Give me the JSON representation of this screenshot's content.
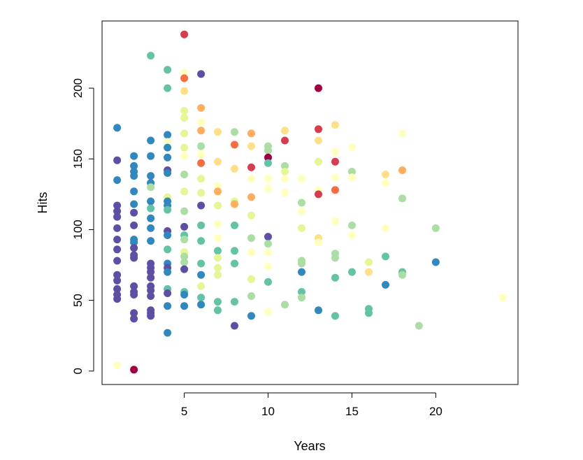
{
  "chart_data": {
    "type": "scatter",
    "title": "",
    "xlabel": "Years",
    "ylabel": "Hits",
    "xlim": [
      0.1,
      24.9
    ],
    "ylim": [
      -9.5,
      247.5
    ],
    "x_ticks": [
      5,
      10,
      15,
      20
    ],
    "y_ticks": [
      0,
      50,
      100,
      150,
      200
    ],
    "x_tick_labels": [
      "5",
      "10",
      "15",
      "20"
    ],
    "y_tick_labels": [
      "0",
      "50",
      "100",
      "150",
      "200"
    ],
    "grid": false,
    "legend": "none",
    "palette": [
      "#5E4FA2",
      "#3288BD",
      "#66C2A5",
      "#ABDDA4",
      "#E6F598",
      "#FFFFBF",
      "#FEE08B",
      "#FDAE61",
      "#F46D43",
      "#D53E4F",
      "#9E0142"
    ],
    "points": [
      {
        "x": 1,
        "y": 172,
        "c": 1
      },
      {
        "x": 1,
        "y": 149,
        "c": 0
      },
      {
        "x": 1,
        "y": 135,
        "c": 1
      },
      {
        "x": 1,
        "y": 117,
        "c": 0
      },
      {
        "x": 1,
        "y": 113,
        "c": 0
      },
      {
        "x": 1,
        "y": 109,
        "c": 0
      },
      {
        "x": 1,
        "y": 101,
        "c": 0
      },
      {
        "x": 1,
        "y": 93,
        "c": 0
      },
      {
        "x": 1,
        "y": 86,
        "c": 0
      },
      {
        "x": 1,
        "y": 78,
        "c": 0
      },
      {
        "x": 1,
        "y": 68,
        "c": 0
      },
      {
        "x": 1,
        "y": 64,
        "c": 0
      },
      {
        "x": 1,
        "y": 58,
        "c": 0
      },
      {
        "x": 1,
        "y": 54,
        "c": 0
      },
      {
        "x": 1,
        "y": 51,
        "c": 0
      },
      {
        "x": 1,
        "y": 4,
        "c": 5
      },
      {
        "x": 2,
        "y": 152,
        "c": 1
      },
      {
        "x": 2,
        "y": 145,
        "c": 1
      },
      {
        "x": 2,
        "y": 141,
        "c": 1
      },
      {
        "x": 2,
        "y": 138,
        "c": 1
      },
      {
        "x": 2,
        "y": 127,
        "c": 1
      },
      {
        "x": 2,
        "y": 118,
        "c": 1
      },
      {
        "x": 2,
        "y": 112,
        "c": 0
      },
      {
        "x": 2,
        "y": 103,
        "c": 0
      },
      {
        "x": 2,
        "y": 93,
        "c": 1
      },
      {
        "x": 2,
        "y": 91,
        "c": 1
      },
      {
        "x": 2,
        "y": 87,
        "c": 0
      },
      {
        "x": 2,
        "y": 82,
        "c": 0
      },
      {
        "x": 2,
        "y": 80,
        "c": 0
      },
      {
        "x": 2,
        "y": 60,
        "c": 0
      },
      {
        "x": 2,
        "y": 56,
        "c": 0
      },
      {
        "x": 2,
        "y": 54,
        "c": 0
      },
      {
        "x": 2,
        "y": 41,
        "c": 0
      },
      {
        "x": 2,
        "y": 37,
        "c": 0
      },
      {
        "x": 2,
        "y": 1,
        "c": 10
      },
      {
        "x": 3,
        "y": 223,
        "c": 2
      },
      {
        "x": 3,
        "y": 163,
        "c": 1
      },
      {
        "x": 3,
        "y": 152,
        "c": 1
      },
      {
        "x": 3,
        "y": 138,
        "c": 1
      },
      {
        "x": 3,
        "y": 133,
        "c": 1
      },
      {
        "x": 3,
        "y": 130,
        "c": 3
      },
      {
        "x": 3,
        "y": 120,
        "c": 1
      },
      {
        "x": 3,
        "y": 115,
        "c": 2
      },
      {
        "x": 3,
        "y": 108,
        "c": 1
      },
      {
        "x": 3,
        "y": 101,
        "c": 1
      },
      {
        "x": 3,
        "y": 92,
        "c": 1
      },
      {
        "x": 3,
        "y": 76,
        "c": 0
      },
      {
        "x": 3,
        "y": 73,
        "c": 0
      },
      {
        "x": 3,
        "y": 70,
        "c": 0
      },
      {
        "x": 3,
        "y": 66,
        "c": 0
      },
      {
        "x": 3,
        "y": 60,
        "c": 0
      },
      {
        "x": 3,
        "y": 57,
        "c": 0
      },
      {
        "x": 3,
        "y": 53,
        "c": 0
      },
      {
        "x": 3,
        "y": 43,
        "c": 0
      },
      {
        "x": 3,
        "y": 41,
        "c": 0
      },
      {
        "x": 3,
        "y": 39,
        "c": 0
      },
      {
        "x": 4,
        "y": 213,
        "c": 2
      },
      {
        "x": 4,
        "y": 200,
        "c": 2
      },
      {
        "x": 4,
        "y": 167,
        "c": 1
      },
      {
        "x": 4,
        "y": 162,
        "c": 5
      },
      {
        "x": 4,
        "y": 158,
        "c": 1
      },
      {
        "x": 4,
        "y": 151,
        "c": 1
      },
      {
        "x": 4,
        "y": 142,
        "c": 0
      },
      {
        "x": 4,
        "y": 140,
        "c": 1
      },
      {
        "x": 4,
        "y": 123,
        "c": 4
      },
      {
        "x": 4,
        "y": 120,
        "c": 1
      },
      {
        "x": 4,
        "y": 117,
        "c": 1
      },
      {
        "x": 4,
        "y": 114,
        "c": 2
      },
      {
        "x": 4,
        "y": 99,
        "c": 0
      },
      {
        "x": 4,
        "y": 96,
        "c": 1
      },
      {
        "x": 4,
        "y": 86,
        "c": 2
      },
      {
        "x": 4,
        "y": 76,
        "c": 1
      },
      {
        "x": 4,
        "y": 73,
        "c": 0
      },
      {
        "x": 4,
        "y": 70,
        "c": 1
      },
      {
        "x": 4,
        "y": 58,
        "c": 2
      },
      {
        "x": 4,
        "y": 55,
        "c": 0
      },
      {
        "x": 4,
        "y": 46,
        "c": 1
      },
      {
        "x": 4,
        "y": 27,
        "c": 1
      },
      {
        "x": 5,
        "y": 238,
        "c": 9
      },
      {
        "x": 5,
        "y": 211,
        "c": 5
      },
      {
        "x": 5,
        "y": 207,
        "c": 8
      },
      {
        "x": 5,
        "y": 198,
        "c": 6
      },
      {
        "x": 5,
        "y": 184,
        "c": 4
      },
      {
        "x": 5,
        "y": 179,
        "c": 4
      },
      {
        "x": 5,
        "y": 168,
        "c": 4
      },
      {
        "x": 5,
        "y": 158,
        "c": 4
      },
      {
        "x": 5,
        "y": 152,
        "c": 5
      },
      {
        "x": 5,
        "y": 139,
        "c": 3
      },
      {
        "x": 5,
        "y": 127,
        "c": 4
      },
      {
        "x": 5,
        "y": 113,
        "c": 3
      },
      {
        "x": 5,
        "y": 102,
        "c": 0
      },
      {
        "x": 5,
        "y": 96,
        "c": 2
      },
      {
        "x": 5,
        "y": 93,
        "c": 3
      },
      {
        "x": 5,
        "y": 84,
        "c": 4
      },
      {
        "x": 5,
        "y": 81,
        "c": 3
      },
      {
        "x": 5,
        "y": 77,
        "c": 3
      },
      {
        "x": 5,
        "y": 72,
        "c": 0
      },
      {
        "x": 5,
        "y": 56,
        "c": 2
      },
      {
        "x": 5,
        "y": 54,
        "c": 1
      },
      {
        "x": 5,
        "y": 46,
        "c": 1
      },
      {
        "x": 6,
        "y": 210,
        "c": 0
      },
      {
        "x": 6,
        "y": 186,
        "c": 7
      },
      {
        "x": 6,
        "y": 176,
        "c": 5
      },
      {
        "x": 6,
        "y": 170,
        "c": 7
      },
      {
        "x": 6,
        "y": 159,
        "c": 3
      },
      {
        "x": 6,
        "y": 153,
        "c": 5
      },
      {
        "x": 6,
        "y": 147,
        "c": 8
      },
      {
        "x": 6,
        "y": 136,
        "c": 4
      },
      {
        "x": 6,
        "y": 126,
        "c": 4
      },
      {
        "x": 6,
        "y": 117,
        "c": 0
      },
      {
        "x": 6,
        "y": 103,
        "c": 2
      },
      {
        "x": 6,
        "y": 92,
        "c": 2
      },
      {
        "x": 6,
        "y": 76,
        "c": 2
      },
      {
        "x": 6,
        "y": 68,
        "c": 1
      },
      {
        "x": 6,
        "y": 60,
        "c": 4
      },
      {
        "x": 6,
        "y": 52,
        "c": 2
      },
      {
        "x": 6,
        "y": 47,
        "c": 1
      },
      {
        "x": 7,
        "y": 169,
        "c": 6
      },
      {
        "x": 7,
        "y": 148,
        "c": 6
      },
      {
        "x": 7,
        "y": 131,
        "c": 5
      },
      {
        "x": 7,
        "y": 127,
        "c": 7
      },
      {
        "x": 7,
        "y": 117,
        "c": 4
      },
      {
        "x": 7,
        "y": 104,
        "c": 5
      },
      {
        "x": 7,
        "y": 94,
        "c": 5
      },
      {
        "x": 7,
        "y": 85,
        "c": 2
      },
      {
        "x": 7,
        "y": 80,
        "c": 4
      },
      {
        "x": 7,
        "y": 73,
        "c": 4
      },
      {
        "x": 7,
        "y": 68,
        "c": 4
      },
      {
        "x": 7,
        "y": 49,
        "c": 2
      },
      {
        "x": 7,
        "y": 43,
        "c": 2
      },
      {
        "x": 8,
        "y": 169,
        "c": 3
      },
      {
        "x": 8,
        "y": 160,
        "c": 8
      },
      {
        "x": 8,
        "y": 143,
        "c": 6
      },
      {
        "x": 8,
        "y": 120,
        "c": 4
      },
      {
        "x": 8,
        "y": 118,
        "c": 7
      },
      {
        "x": 8,
        "y": 103,
        "c": 2
      },
      {
        "x": 8,
        "y": 85,
        "c": 2
      },
      {
        "x": 8,
        "y": 76,
        "c": 2
      },
      {
        "x": 8,
        "y": 49,
        "c": 2
      },
      {
        "x": 8,
        "y": 32,
        "c": 0
      },
      {
        "x": 9,
        "y": 168,
        "c": 7
      },
      {
        "x": 9,
        "y": 159,
        "c": 6
      },
      {
        "x": 9,
        "y": 144,
        "c": 9
      },
      {
        "x": 9,
        "y": 136,
        "c": 5
      },
      {
        "x": 9,
        "y": 123,
        "c": 7
      },
      {
        "x": 9,
        "y": 110,
        "c": 4
      },
      {
        "x": 9,
        "y": 94,
        "c": 3
      },
      {
        "x": 9,
        "y": 84,
        "c": 5
      },
      {
        "x": 9,
        "y": 65,
        "c": 4
      },
      {
        "x": 9,
        "y": 53,
        "c": 3
      },
      {
        "x": 9,
        "y": 39,
        "c": 1
      },
      {
        "x": 10,
        "y": 159,
        "c": 3
      },
      {
        "x": 10,
        "y": 156,
        "c": 3
      },
      {
        "x": 10,
        "y": 151,
        "c": 10
      },
      {
        "x": 10,
        "y": 147,
        "c": 2
      },
      {
        "x": 10,
        "y": 136,
        "c": 5
      },
      {
        "x": 10,
        "y": 129,
        "c": 5
      },
      {
        "x": 10,
        "y": 95,
        "c": 0
      },
      {
        "x": 10,
        "y": 90,
        "c": 3
      },
      {
        "x": 10,
        "y": 84,
        "c": 5
      },
      {
        "x": 10,
        "y": 74,
        "c": 5
      },
      {
        "x": 10,
        "y": 63,
        "c": 2
      },
      {
        "x": 10,
        "y": 42,
        "c": 5
      },
      {
        "x": 11,
        "y": 170,
        "c": 6
      },
      {
        "x": 11,
        "y": 163,
        "c": 9
      },
      {
        "x": 11,
        "y": 145,
        "c": 3
      },
      {
        "x": 11,
        "y": 141,
        "c": 4
      },
      {
        "x": 11,
        "y": 136,
        "c": 5
      },
      {
        "x": 11,
        "y": 126,
        "c": 5
      },
      {
        "x": 11,
        "y": 47,
        "c": 3
      },
      {
        "x": 12,
        "y": 136,
        "c": 5
      },
      {
        "x": 12,
        "y": 119,
        "c": 3
      },
      {
        "x": 12,
        "y": 113,
        "c": 5
      },
      {
        "x": 12,
        "y": 101,
        "c": 4
      },
      {
        "x": 12,
        "y": 78,
        "c": 3
      },
      {
        "x": 12,
        "y": 76,
        "c": 3
      },
      {
        "x": 12,
        "y": 70,
        "c": 1
      },
      {
        "x": 12,
        "y": 56,
        "c": 2
      },
      {
        "x": 12,
        "y": 52,
        "c": 3
      },
      {
        "x": 13,
        "y": 200,
        "c": 10
      },
      {
        "x": 13,
        "y": 171,
        "c": 9
      },
      {
        "x": 13,
        "y": 163,
        "c": 6
      },
      {
        "x": 13,
        "y": 148,
        "c": 4
      },
      {
        "x": 13,
        "y": 128,
        "c": 5
      },
      {
        "x": 13,
        "y": 125,
        "c": 9
      },
      {
        "x": 13,
        "y": 94,
        "c": 6
      },
      {
        "x": 13,
        "y": 91,
        "c": 5
      },
      {
        "x": 13,
        "y": 43,
        "c": 1
      },
      {
        "x": 14,
        "y": 174,
        "c": 6
      },
      {
        "x": 14,
        "y": 155,
        "c": 5
      },
      {
        "x": 14,
        "y": 148,
        "c": 9
      },
      {
        "x": 14,
        "y": 137,
        "c": 5
      },
      {
        "x": 14,
        "y": 128,
        "c": 8
      },
      {
        "x": 14,
        "y": 106,
        "c": 5
      },
      {
        "x": 14,
        "y": 83,
        "c": 3
      },
      {
        "x": 14,
        "y": 80,
        "c": 3
      },
      {
        "x": 14,
        "y": 66,
        "c": 2
      },
      {
        "x": 14,
        "y": 39,
        "c": 2
      },
      {
        "x": 15,
        "y": 158,
        "c": 5
      },
      {
        "x": 15,
        "y": 141,
        "c": 3
      },
      {
        "x": 15,
        "y": 137,
        "c": 5
      },
      {
        "x": 15,
        "y": 103,
        "c": 3
      },
      {
        "x": 15,
        "y": 96,
        "c": 5
      },
      {
        "x": 15,
        "y": 70,
        "c": 2
      },
      {
        "x": 16,
        "y": 77,
        "c": 4
      },
      {
        "x": 16,
        "y": 70,
        "c": 6
      },
      {
        "x": 16,
        "y": 44,
        "c": 2
      },
      {
        "x": 16,
        "y": 41,
        "c": 2
      },
      {
        "x": 17,
        "y": 139,
        "c": 6
      },
      {
        "x": 17,
        "y": 133,
        "c": 5
      },
      {
        "x": 17,
        "y": 101,
        "c": 5
      },
      {
        "x": 17,
        "y": 81,
        "c": 2
      },
      {
        "x": 17,
        "y": 61,
        "c": 1
      },
      {
        "x": 18,
        "y": 168,
        "c": 5
      },
      {
        "x": 18,
        "y": 142,
        "c": 7
      },
      {
        "x": 18,
        "y": 122,
        "c": 3
      },
      {
        "x": 18,
        "y": 70,
        "c": 2
      },
      {
        "x": 18,
        "y": 68,
        "c": 3
      },
      {
        "x": 19,
        "y": 32,
        "c": 3
      },
      {
        "x": 20,
        "y": 101,
        "c": 3
      },
      {
        "x": 20,
        "y": 77,
        "c": 1
      },
      {
        "x": 24,
        "y": 52,
        "c": 5
      }
    ]
  }
}
